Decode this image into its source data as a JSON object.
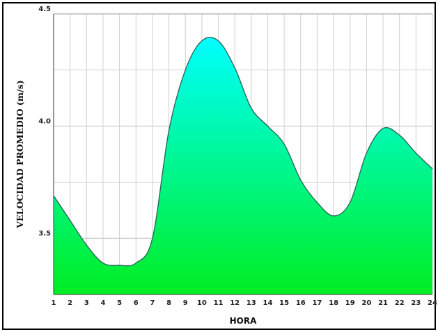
{
  "chart_data": {
    "type": "area",
    "title": "",
    "xlabel": "HORA",
    "ylabel": "VELOCIDAD PROMEDIO (m/s)",
    "x": [
      1,
      2,
      3,
      4,
      5,
      6,
      7,
      8,
      9,
      10,
      11,
      12,
      13,
      14,
      15,
      16,
      17,
      18,
      19,
      20,
      21,
      22,
      23,
      24
    ],
    "x_tick_labels": [
      "1",
      "2",
      "3",
      "4",
      "5",
      "6",
      "7",
      "8",
      "9",
      "10",
      "11",
      "12",
      "13",
      "14",
      "15",
      "16",
      "17",
      "18",
      "19",
      "20",
      "21",
      "22",
      "23",
      "24"
    ],
    "y_tick_labels": [
      "3.5",
      "4.0",
      "4.5"
    ],
    "y_ticks": [
      3.5,
      4.0,
      4.5
    ],
    "xlim": [
      1,
      24
    ],
    "ylim": [
      3.25,
      4.5
    ],
    "grid": true,
    "series": [
      {
        "values": [
          3.69,
          3.58,
          3.47,
          3.39,
          3.38,
          3.39,
          3.5,
          3.98,
          4.25,
          4.38,
          4.38,
          4.26,
          4.08,
          4.0,
          3.92,
          3.76,
          3.66,
          3.6,
          3.66,
          3.88,
          3.99,
          3.96,
          3.88,
          3.81
        ],
        "fill_top_color": "#00ffff",
        "fill_bottom_color": "#00ee22",
        "line_color": "#2a6b5a"
      }
    ]
  }
}
